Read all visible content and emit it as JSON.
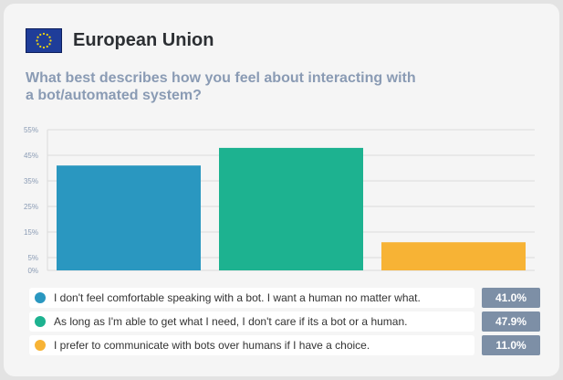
{
  "header": {
    "region": "European Union",
    "flag_icon": "eu-flag-icon"
  },
  "question": "What best describes how you feel about interacting with a bot/automated system?",
  "colors": {
    "blue": "#2a97c0",
    "green": "#1db290",
    "orange": "#f7b335",
    "value_badge": "#7d8fa6"
  },
  "chart_data": {
    "type": "bar",
    "title": "What best describes how you feel about interacting with a bot/automated system?",
    "categories": [
      "I don't feel comfortable speaking with a bot. I want a human no matter what.",
      "As long as I'm able to get what I need, I don't care if its a bot or a human.",
      "I prefer to communicate with bots over humans if I have a choice."
    ],
    "values": [
      41.0,
      47.9,
      11.0
    ],
    "value_labels": [
      "41.0%",
      "47.9%",
      "11.0%"
    ],
    "bar_colors": [
      "#2a97c0",
      "#1db290",
      "#f7b335"
    ],
    "ylim": [
      0,
      55
    ],
    "yticks": [
      0,
      5,
      15,
      25,
      35,
      45,
      55
    ],
    "ytick_labels": [
      "0%",
      "5%",
      "15%",
      "25%",
      "35%",
      "45%",
      "55%"
    ],
    "grid": true,
    "legend_placement": "bottom"
  }
}
